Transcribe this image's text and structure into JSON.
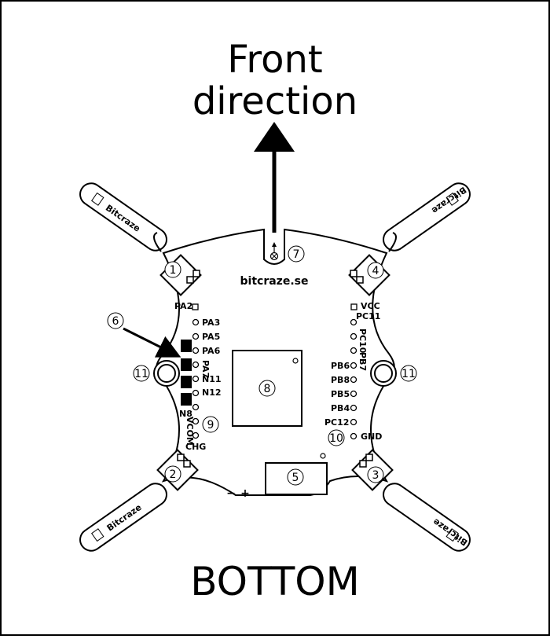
{
  "title_line1": "Front",
  "title_line2": "direction",
  "footer": "BOTTOM",
  "brand_url": "bitcraze.se",
  "brand_arm": "Bitcraze",
  "pins_left": [
    "PA2",
    "PA3",
    "PA5",
    "PA6",
    "PA7",
    "N11",
    "N12",
    "N8",
    "VCOM",
    "CHG"
  ],
  "pins_right": [
    "VCC",
    "PC11",
    "PC10",
    "PB7",
    "PB6",
    "PB8",
    "PB5",
    "PB4",
    "PC12",
    "GND"
  ],
  "polarity_minus": "−",
  "polarity_plus": "+",
  "callouts": {
    "m1": "1",
    "m2": "2",
    "m3": "3",
    "m4": "4",
    "n5": "5",
    "n6": "6",
    "n7": "7",
    "n8": "8",
    "n9": "9",
    "n10": "10",
    "n11a": "11",
    "n11b": "11"
  },
  "colors": {
    "ink": "#000000",
    "paper": "#ffffff"
  }
}
